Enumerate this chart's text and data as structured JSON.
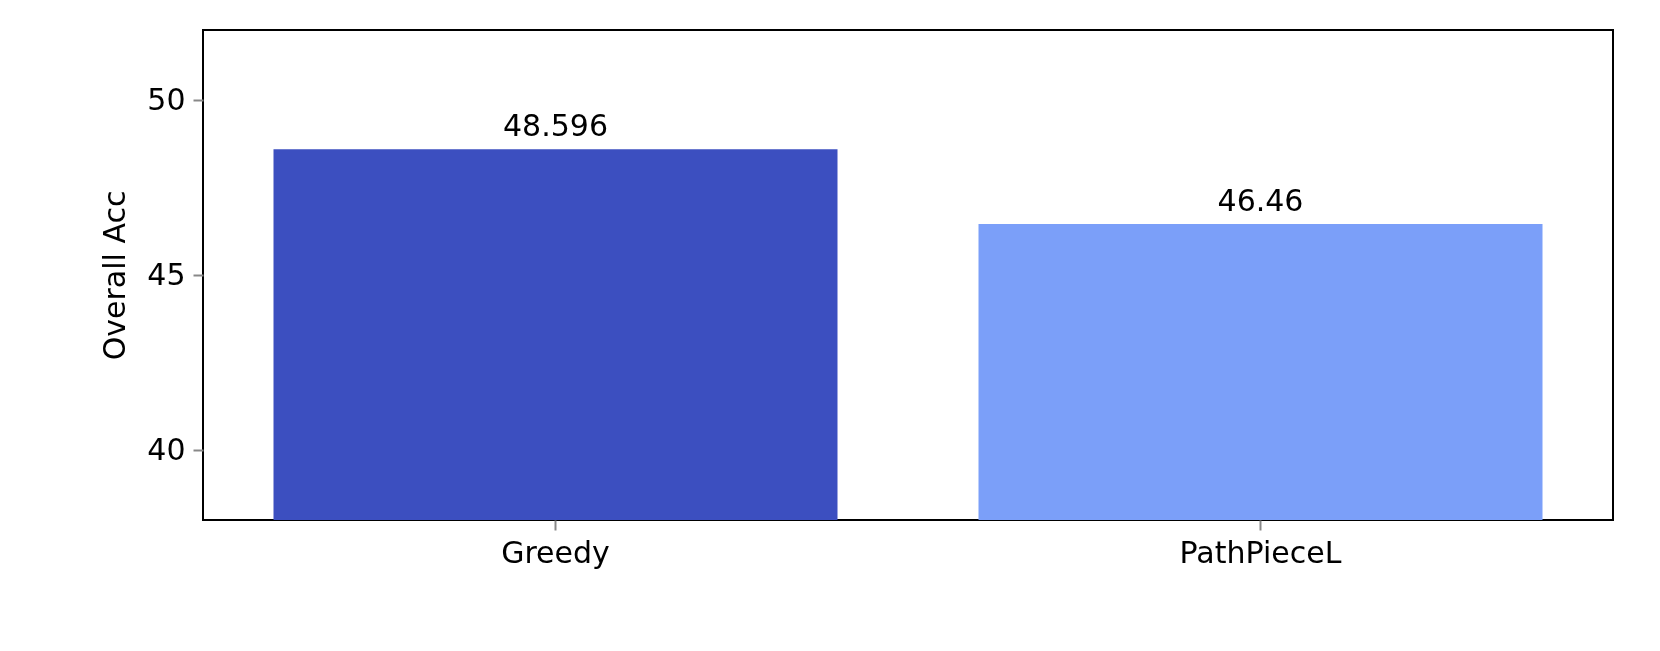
{
  "chart_data": {
    "type": "bar",
    "ylabel": "Overall Acc",
    "categories": [
      "Greedy",
      "PathPieceL"
    ],
    "values": [
      48.596,
      46.46
    ],
    "colors": [
      "#3c4fc0",
      "#7b9ff9"
    ],
    "ylim": [
      38,
      52
    ],
    "yticks": [
      40,
      45,
      50
    ],
    "data_labels": true,
    "grid": false
  }
}
